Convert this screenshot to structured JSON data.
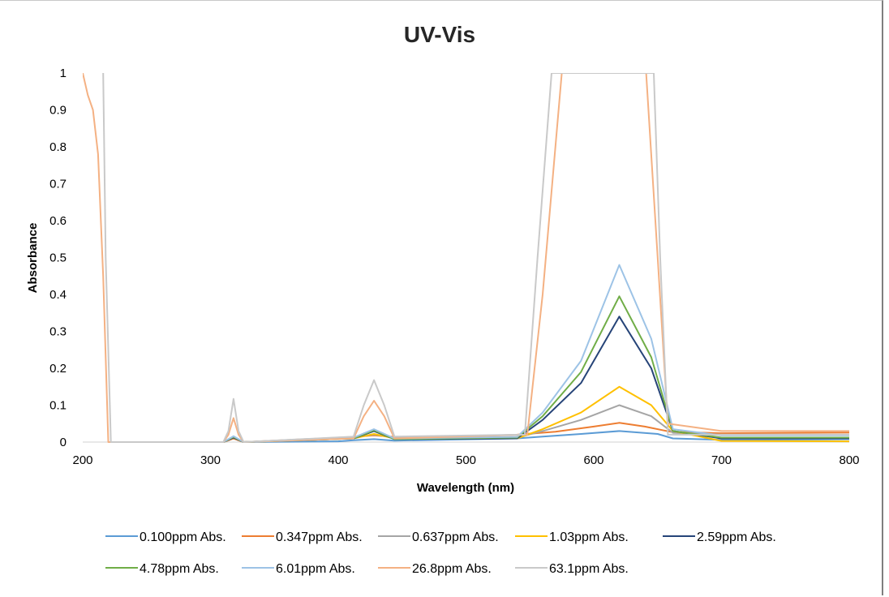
{
  "chart_data": {
    "type": "line",
    "title": "UV-Vis",
    "xlabel": "Wavelength (nm)",
    "ylabel": "Absorbance",
    "xlim": [
      200,
      800
    ],
    "ylim": [
      0,
      1
    ],
    "x_ticks": [
      "200",
      "300",
      "400",
      "500",
      "600",
      "700",
      "800"
    ],
    "y_ticks": [
      "0",
      "0.1",
      "0.2",
      "0.3",
      "0.4",
      "0.5",
      "0.6",
      "0.7",
      "0.8",
      "0.9",
      "1"
    ],
    "grid": false,
    "legend_position": "bottom",
    "series": [
      {
        "name": "0.100ppm Abs.",
        "color": "#5b9bd5",
        "points": [
          [
            310,
            0
          ],
          [
            318,
            0.01
          ],
          [
            326,
            0
          ],
          [
            400,
            0.002
          ],
          [
            412,
            0.005
          ],
          [
            428,
            0.008
          ],
          [
            444,
            0.004
          ],
          [
            540,
            0.01
          ],
          [
            560,
            0.015
          ],
          [
            590,
            0.022
          ],
          [
            620,
            0.03
          ],
          [
            650,
            0.022
          ],
          [
            662,
            0.01
          ],
          [
            700,
            0.006
          ],
          [
            800,
            0.008
          ]
        ]
      },
      {
        "name": "0.347ppm Abs.",
        "color": "#ed7d31",
        "points": [
          [
            310,
            0
          ],
          [
            318,
            0.01
          ],
          [
            326,
            0
          ],
          [
            400,
            0.012
          ],
          [
            412,
            0.014
          ],
          [
            428,
            0.018
          ],
          [
            444,
            0.014
          ],
          [
            500,
            0.016
          ],
          [
            540,
            0.02
          ],
          [
            570,
            0.028
          ],
          [
            600,
            0.042
          ],
          [
            620,
            0.052
          ],
          [
            640,
            0.042
          ],
          [
            660,
            0.028
          ],
          [
            700,
            0.024
          ],
          [
            800,
            0.026
          ]
        ]
      },
      {
        "name": "0.637ppm Abs.",
        "color": "#a5a5a5",
        "points": [
          [
            310,
            0
          ],
          [
            318,
            0.015
          ],
          [
            326,
            0
          ],
          [
            412,
            0.012
          ],
          [
            428,
            0.02
          ],
          [
            444,
            0.012
          ],
          [
            540,
            0.012
          ],
          [
            560,
            0.03
          ],
          [
            590,
            0.06
          ],
          [
            620,
            0.1
          ],
          [
            645,
            0.07
          ],
          [
            662,
            0.025
          ],
          [
            700,
            0.02
          ],
          [
            800,
            0.02
          ]
        ]
      },
      {
        "name": "1.03ppm Abs.",
        "color": "#ffc000",
        "points": [
          [
            310,
            0
          ],
          [
            318,
            0.012
          ],
          [
            326,
            0
          ],
          [
            412,
            0.01
          ],
          [
            428,
            0.022
          ],
          [
            444,
            0.01
          ],
          [
            540,
            0.01
          ],
          [
            560,
            0.035
          ],
          [
            590,
            0.08
          ],
          [
            620,
            0.15
          ],
          [
            645,
            0.1
          ],
          [
            662,
            0.03
          ],
          [
            700,
            0.003
          ],
          [
            800,
            0.002
          ]
        ]
      },
      {
        "name": "2.59ppm Abs.",
        "color": "#264478",
        "points": [
          [
            310,
            0
          ],
          [
            318,
            0.012
          ],
          [
            326,
            0
          ],
          [
            412,
            0.01
          ],
          [
            428,
            0.03
          ],
          [
            444,
            0.008
          ],
          [
            540,
            0.01
          ],
          [
            560,
            0.06
          ],
          [
            590,
            0.16
          ],
          [
            620,
            0.34
          ],
          [
            645,
            0.2
          ],
          [
            662,
            0.03
          ],
          [
            700,
            0.01
          ],
          [
            800,
            0.01
          ]
        ]
      },
      {
        "name": "4.78ppm Abs.",
        "color": "#70ad47",
        "points": [
          [
            310,
            0
          ],
          [
            318,
            0.014
          ],
          [
            326,
            0
          ],
          [
            412,
            0.01
          ],
          [
            428,
            0.032
          ],
          [
            444,
            0.008
          ],
          [
            540,
            0.012
          ],
          [
            560,
            0.07
          ],
          [
            590,
            0.19
          ],
          [
            620,
            0.395
          ],
          [
            645,
            0.23
          ],
          [
            662,
            0.03
          ],
          [
            700,
            0.012
          ],
          [
            800,
            0.012
          ]
        ]
      },
      {
        "name": "6.01ppm Abs.",
        "color": "#9dc3e6",
        "points": [
          [
            310,
            0
          ],
          [
            318,
            0.016
          ],
          [
            326,
            0
          ],
          [
            412,
            0.012
          ],
          [
            428,
            0.035
          ],
          [
            444,
            0.01
          ],
          [
            540,
            0.014
          ],
          [
            560,
            0.08
          ],
          [
            590,
            0.22
          ],
          [
            620,
            0.48
          ],
          [
            645,
            0.28
          ],
          [
            662,
            0.035
          ],
          [
            700,
            0.018
          ],
          [
            800,
            0.018
          ]
        ]
      },
      {
        "name": "26.8ppm Abs.",
        "color": "#f4b183",
        "points": [
          [
            200,
            1
          ],
          [
            204,
            0.94
          ],
          [
            208,
            0.9
          ],
          [
            212,
            0.78
          ],
          [
            216,
            0.45
          ],
          [
            220,
            0
          ],
          [
            310,
            0
          ],
          [
            314,
            0.02
          ],
          [
            318,
            0.065
          ],
          [
            322,
            0.02
          ],
          [
            326,
            0
          ],
          [
            412,
            0.01
          ],
          [
            420,
            0.07
          ],
          [
            428,
            0.112
          ],
          [
            436,
            0.07
          ],
          [
            444,
            0.01
          ],
          [
            548,
            0.02
          ],
          [
            560,
            0.4
          ],
          [
            575,
            1
          ],
          [
            641,
            1
          ],
          [
            650,
            0.5
          ],
          [
            658,
            0.05
          ],
          [
            700,
            0.03
          ],
          [
            800,
            0.03
          ]
        ]
      },
      {
        "name": "63.1ppm Abs.",
        "color": "#c9c9c9",
        "points": [
          [
            216,
            1
          ],
          [
            218,
            0.5
          ],
          [
            222,
            0
          ],
          [
            310,
            0
          ],
          [
            314,
            0.03
          ],
          [
            318,
            0.117
          ],
          [
            322,
            0.03
          ],
          [
            326,
            0
          ],
          [
            412,
            0.015
          ],
          [
            420,
            0.1
          ],
          [
            428,
            0.168
          ],
          [
            436,
            0.1
          ],
          [
            444,
            0.015
          ],
          [
            546,
            0.02
          ],
          [
            556,
            0.5
          ],
          [
            567,
            1
          ],
          [
            647,
            1
          ],
          [
            652,
            0.5
          ],
          [
            658,
            0.02
          ],
          [
            700,
            0.02
          ],
          [
            800,
            0.02
          ]
        ]
      }
    ]
  }
}
